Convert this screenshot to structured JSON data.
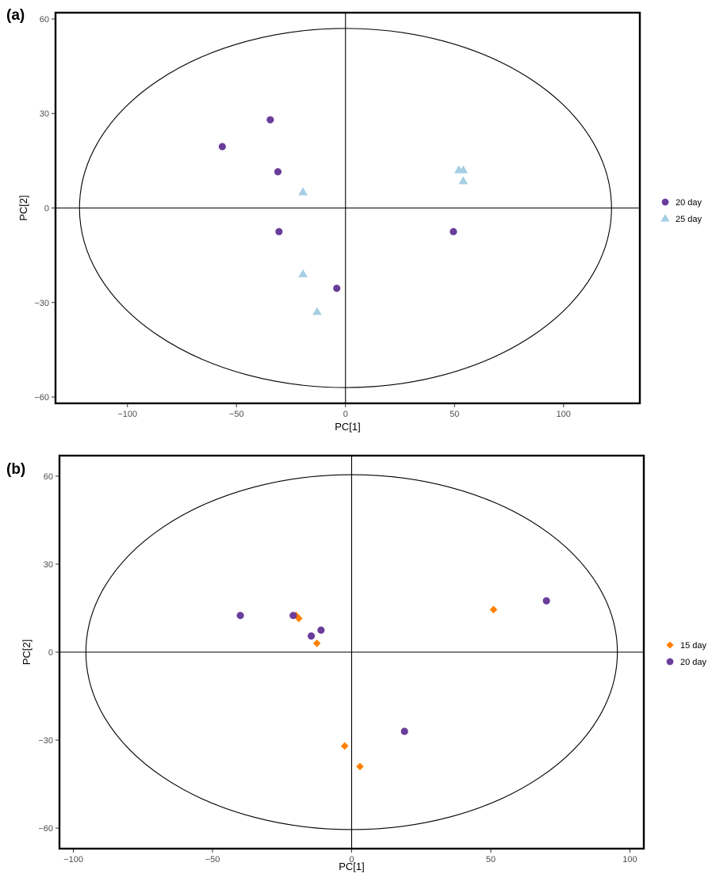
{
  "chart_data": [
    {
      "panel_label": "(a)",
      "type": "scatter",
      "xlabel": "PC[1]",
      "ylabel": "PC[2]",
      "xlim": [
        -133,
        135
      ],
      "ylim": [
        -62,
        62
      ],
      "xticks": [
        -100,
        -50,
        0,
        50,
        100
      ],
      "yticks": [
        -60,
        -30,
        0,
        30,
        60
      ],
      "xtick_labels": [
        "−100",
        "−50",
        "0",
        "50",
        "100"
      ],
      "ytick_labels": [
        "−60",
        "−30",
        "0",
        "30",
        "60"
      ],
      "ellipse": {
        "rx": 122,
        "ry": 57
      },
      "grid": false,
      "legend_position": "right",
      "series": [
        {
          "name": "20 day",
          "marker": "circle",
          "color": "#6a3d9a",
          "points": [
            [
              -56.5,
              19.5
            ],
            [
              -34.5,
              28
            ],
            [
              -31,
              11.5
            ],
            [
              -30.5,
              -7.5
            ],
            [
              -4,
              -25.5
            ],
            [
              49.5,
              -7.5
            ]
          ]
        },
        {
          "name": "25 day",
          "marker": "triangle",
          "color": "#a6cee3",
          "points": [
            [
              -19.5,
              5
            ],
            [
              -19.5,
              -21
            ],
            [
              -13,
              -33
            ],
            [
              52,
              12
            ],
            [
              54,
              12
            ],
            [
              54,
              8.5
            ]
          ]
        }
      ]
    },
    {
      "panel_label": "(b)",
      "type": "scatter",
      "xlabel": "PC[1]",
      "ylabel": "PC[2]",
      "xlim": [
        -105,
        105
      ],
      "ylim": [
        -67,
        67
      ],
      "xticks": [
        -100,
        -50,
        0,
        50,
        100
      ],
      "yticks": [
        -60,
        -30,
        0,
        30,
        60
      ],
      "xtick_labels": [
        "−100",
        "−50",
        "0",
        "50",
        "100"
      ],
      "ytick_labels": [
        "−60",
        "−30",
        "0",
        "30",
        "60"
      ],
      "ellipse": {
        "rx": 95.5,
        "ry": 60.5
      },
      "grid": false,
      "legend_position": "right",
      "series": [
        {
          "name": "15 day",
          "marker": "diamond",
          "color": "#ff7f00",
          "points": [
            [
              -20,
              12.5
            ],
            [
              -19,
              11.5
            ],
            [
              -12.5,
              3
            ],
            [
              -2.5,
              -32
            ],
            [
              3,
              -39
            ],
            [
              51,
              14.5
            ]
          ]
        },
        {
          "name": "20 day",
          "marker": "circle",
          "color": "#6a3d9a",
          "points": [
            [
              -40,
              12.5
            ],
            [
              -21,
              12.5
            ],
            [
              -14.5,
              5.5
            ],
            [
              -11,
              7.5
            ],
            [
              19,
              -27
            ],
            [
              70,
              17.5
            ]
          ]
        }
      ]
    }
  ]
}
